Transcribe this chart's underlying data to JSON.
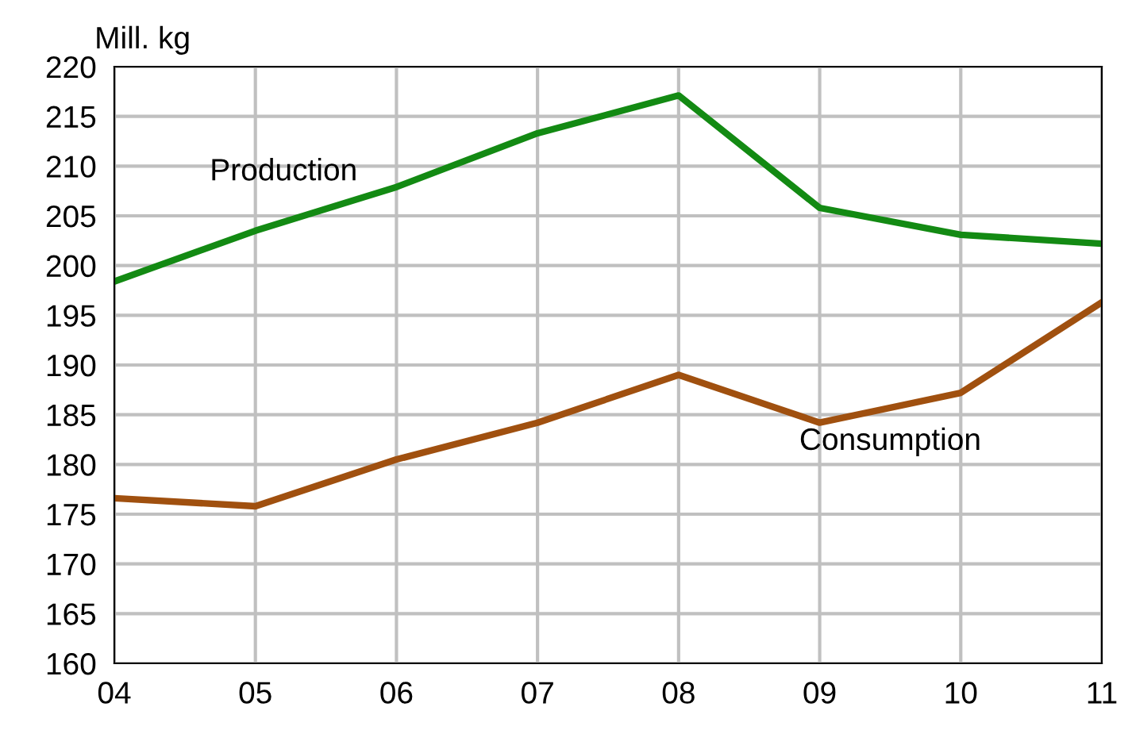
{
  "chart_data": {
    "type": "line",
    "ylabel": "Mill. kg",
    "categories": [
      "04",
      "05",
      "06",
      "07",
      "08",
      "09",
      "10",
      "11"
    ],
    "series": [
      {
        "name": "Production",
        "color": "#138a13",
        "values": [
          198.4,
          203.5,
          207.9,
          213.3,
          217.1,
          205.8,
          203.1,
          202.2
        ]
      },
      {
        "name": "Consumption",
        "color": "#a0500f",
        "values": [
          176.6,
          175.8,
          180.5,
          184.2,
          189.0,
          184.2,
          187.2,
          196.3
        ]
      }
    ],
    "ylim": [
      160,
      220
    ],
    "yticks": [
      160,
      165,
      170,
      175,
      180,
      185,
      190,
      195,
      200,
      205,
      210,
      215,
      220
    ],
    "grid": true,
    "marker": "none",
    "line_style": "solid",
    "legend": false
  }
}
